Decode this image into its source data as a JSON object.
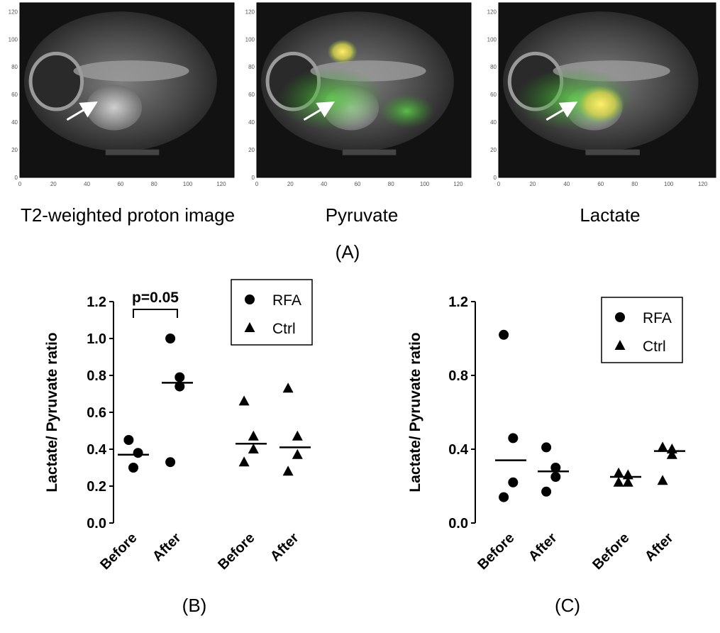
{
  "panel_a": {
    "label": "(A)",
    "images": [
      {
        "caption": "T2-weighted proton image",
        "overlay": "none"
      },
      {
        "caption": "Pyruvate",
        "overlay": "green, yellow hotspot at top"
      },
      {
        "caption": "Lactate",
        "overlay": "green, bright yellow at arrow"
      }
    ],
    "axis": {
      "x_ticks": [
        "0",
        "20",
        "40",
        "60",
        "80",
        "100",
        "120"
      ],
      "y_ticks": [
        "0",
        "20",
        "40",
        "60",
        "80",
        "100",
        "120"
      ]
    }
  },
  "chart_data": [
    {
      "type": "scatter",
      "panel_label": "(B)",
      "ylabel": "Lactate/ Pyruvate ratio",
      "ylim": [
        0.0,
        1.2
      ],
      "yticks": [
        "0.0",
        "0.2",
        "0.4",
        "0.6",
        "0.8",
        "1.0",
        "1.2"
      ],
      "categories": [
        "Before",
        "After",
        "Before",
        "After"
      ],
      "legend": {
        "placement": "top-right",
        "entries": [
          {
            "name": "RFA",
            "marker": "circle"
          },
          {
            "name": "Ctrl",
            "marker": "triangle"
          }
        ]
      },
      "annotation": "p=0.05",
      "series": [
        {
          "name": "RFA",
          "marker": "circle",
          "groups": [
            {
              "category_index": 0,
              "values": [
                0.45,
                0.3,
                0.38
              ],
              "mean": 0.37
            },
            {
              "category_index": 1,
              "values": [
                1.0,
                0.79,
                0.74,
                0.33
              ],
              "mean": 0.76
            }
          ]
        },
        {
          "name": "Ctrl",
          "marker": "triangle",
          "groups": [
            {
              "category_index": 2,
              "values": [
                0.66,
                0.47,
                0.4,
                0.33
              ],
              "mean": 0.43
            },
            {
              "category_index": 3,
              "values": [
                0.73,
                0.47,
                0.37,
                0.28
              ],
              "mean": 0.41
            }
          ]
        }
      ]
    },
    {
      "type": "scatter",
      "panel_label": "(C)",
      "ylabel": "Lactate/ Pyruvate ratio",
      "ylim": [
        0.0,
        1.2
      ],
      "yticks": [
        "0.0",
        "0.4",
        "0.8",
        "1.2"
      ],
      "categories": [
        "Before",
        "After",
        "Before",
        "After"
      ],
      "legend": {
        "placement": "top-right",
        "entries": [
          {
            "name": "RFA",
            "marker": "circle"
          },
          {
            "name": "Ctrl",
            "marker": "triangle"
          }
        ]
      },
      "series": [
        {
          "name": "RFA",
          "marker": "circle",
          "groups": [
            {
              "category_index": 0,
              "values": [
                1.02,
                0.46,
                0.22,
                0.14
              ],
              "mean": 0.34
            },
            {
              "category_index": 1,
              "values": [
                0.41,
                0.3,
                0.25,
                0.17
              ],
              "mean": 0.28
            }
          ]
        },
        {
          "name": "Ctrl",
          "marker": "triangle",
          "groups": [
            {
              "category_index": 2,
              "values": [
                0.27,
                0.26,
                0.22,
                0.22
              ],
              "mean": 0.25
            },
            {
              "category_index": 3,
              "values": [
                0.41,
                0.4,
                0.37,
                0.23
              ],
              "mean": 0.39
            }
          ]
        }
      ]
    }
  ]
}
